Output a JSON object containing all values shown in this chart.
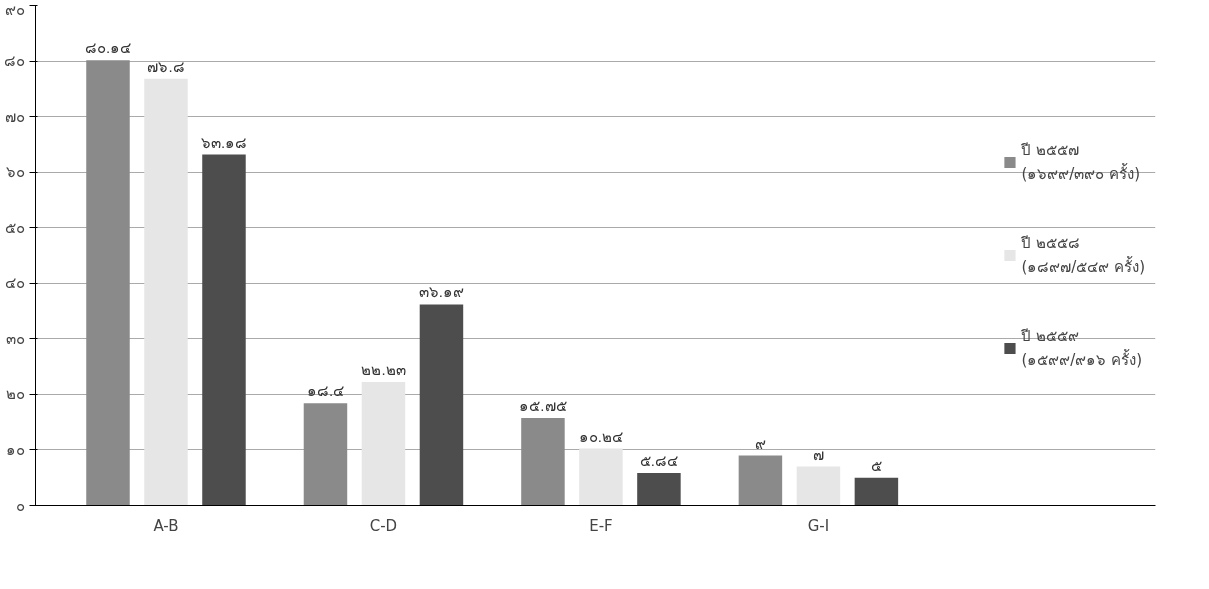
{
  "chart_data": {
    "type": "bar",
    "categories": [
      "A-B",
      "C-D",
      "E-F",
      "G-I"
    ],
    "series": [
      {
        "name": "ปี ๒๕๕๗\n(๑๖๙๙/๓๙๐ ครั้ง)",
        "color": "#8a8a8a",
        "values": [
          80.14,
          18.4,
          15.75,
          9
        ],
        "value_labels": [
          "๘๐.๑๔",
          "๑๘.๔",
          "๑๕.๗๕",
          "๙"
        ]
      },
      {
        "name": "ปี ๒๕๕๘\n(๑๘๙๗/๕๔๙ ครั้ง)",
        "color": "#e6e6e6",
        "values": [
          76.8,
          22.23,
          10.24,
          7
        ],
        "value_labels": [
          "๗๖.๘",
          "๒๒.๒๓",
          "๑๐.๒๔",
          "๗"
        ]
      },
      {
        "name": "ปี ๒๕๕๙\n(๑๕๙๙/๙๑๖ ครั้ง)",
        "color": "#4d4d4d",
        "values": [
          63.18,
          36.19,
          5.84,
          5
        ],
        "value_labels": [
          "๖๓.๑๘",
          "๓๖.๑๙",
          "๕.๘๔",
          "๕"
        ]
      }
    ],
    "ylim": [
      0,
      90
    ],
    "yticks": [
      {
        "value": 0,
        "label": "๐"
      },
      {
        "value": 10,
        "label": "๑๐"
      },
      {
        "value": 20,
        "label": "๒๐"
      },
      {
        "value": 30,
        "label": "๓๐"
      },
      {
        "value": 40,
        "label": "๔๐"
      },
      {
        "value": 50,
        "label": "๕๐"
      },
      {
        "value": 60,
        "label": "๖๐"
      },
      {
        "value": 70,
        "label": "๗๐"
      },
      {
        "value": 80,
        "label": "๘๐"
      },
      {
        "value": 90,
        "label": "๙๐"
      }
    ],
    "grid": "y",
    "legend": "right"
  }
}
